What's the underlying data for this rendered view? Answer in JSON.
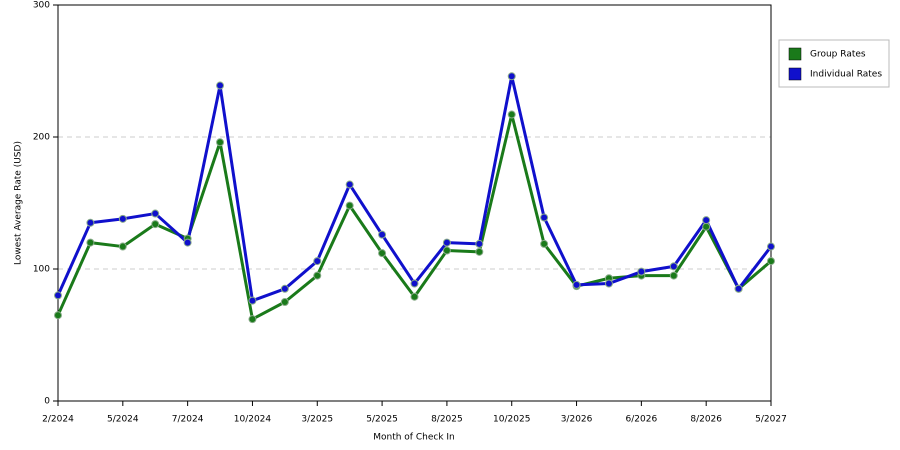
{
  "chart_data": {
    "type": "line",
    "x_label": "Month of Check In",
    "y_label": "Lowest Average Rate (USD)",
    "categories": [
      "2/2024",
      null,
      "5/2024",
      null,
      "7/2024",
      null,
      "10/2024",
      null,
      "3/2025",
      null,
      "5/2025",
      null,
      "8/2025",
      null,
      "10/2025",
      null,
      "3/2026",
      null,
      "6/2026",
      null,
      "8/2026",
      null,
      "5/2027"
    ],
    "series": [
      {
        "name": "Group Rates",
        "color": "#1a7a1a",
        "values": [
          65,
          120,
          117,
          134,
          123,
          196,
          62,
          75,
          95,
          148,
          112,
          79,
          114,
          113,
          217,
          119,
          87,
          93,
          95,
          95,
          132,
          85,
          106
        ]
      },
      {
        "name": "Individual Rates",
        "color": "#1010cc",
        "values": [
          80,
          135,
          138,
          142,
          120,
          239,
          76,
          85,
          106,
          164,
          126,
          89,
          120,
          119,
          246,
          139,
          88,
          89,
          98,
          102,
          137,
          85,
          117
        ]
      }
    ],
    "ylim": [
      0,
      300
    ],
    "yticks": [
      0,
      100,
      200,
      300
    ],
    "grid": true,
    "legend": "right"
  }
}
